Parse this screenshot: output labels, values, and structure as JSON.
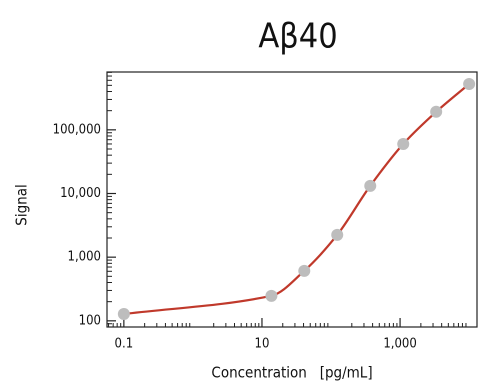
{
  "chart_data": {
    "type": "scatter",
    "title": "Aβ40",
    "x_label": "Concentration   [pg/mL]",
    "y_label": "Signal",
    "x": [
      0.1,
      13.7,
      41,
      123,
      370,
      1111,
      3333,
      10000
    ],
    "series": [
      {
        "values": [
          128,
          247,
          610,
          2240,
          13200,
          60000,
          192000,
          525000
        ],
        "color": "#bdbdbd",
        "line_color": "#c0392b"
      }
    ],
    "x_log": true,
    "y_log": true,
    "minor_ticks": true,
    "xlim": [
      0.057,
      13000
    ],
    "ylim": [
      80,
      810000
    ],
    "xticks": [
      0.1,
      10,
      {
        "value": 1000,
        "label": "1,000"
      }
    ],
    "yticks": [
      100,
      {
        "value": 1000,
        "label": "1,000"
      },
      {
        "value": 10000,
        "label": "10,000"
      },
      {
        "value": 100000,
        "label": "100,000"
      }
    ]
  }
}
